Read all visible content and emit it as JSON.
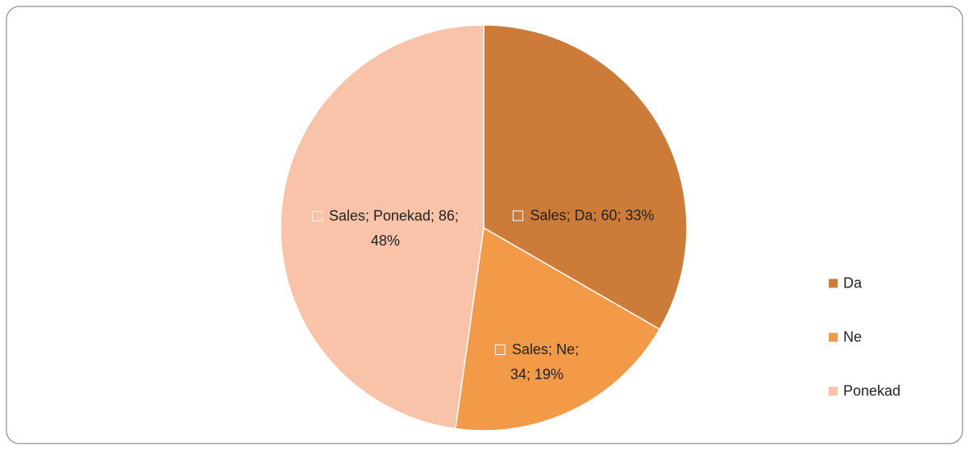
{
  "chart_data": {
    "type": "pie",
    "categories": [
      "Da",
      "Ne",
      "Ponekad"
    ],
    "values": [
      60,
      34,
      86
    ],
    "value_labels": [
      "Sales; Da; 60; 33%",
      "Sales; Ne; 34; 19%",
      "Sales; Ponekad; 86; 48%"
    ],
    "colors": [
      "#cc7b38",
      "#f39a48",
      "#f8c3a9"
    ],
    "legend": "right"
  }
}
